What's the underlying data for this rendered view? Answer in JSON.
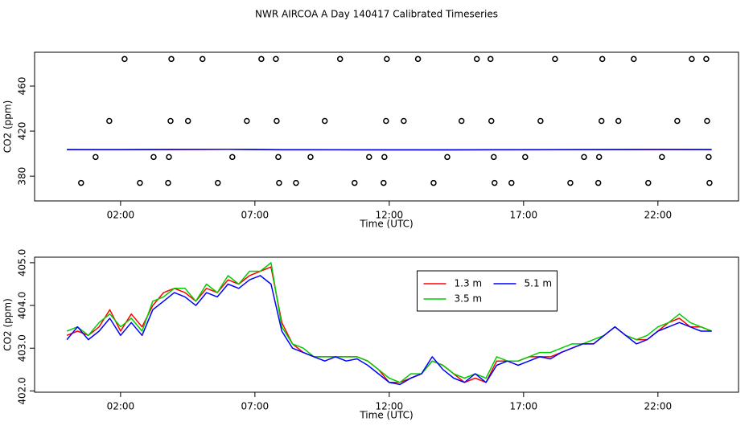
{
  "title": "NWR AIRCOA A  Day 140417  Calibrated Timeseries",
  "chart_data": [
    {
      "type": "line",
      "xlabel": "Time (UTC)",
      "ylabel": "CO2 (ppm)",
      "xlim": [
        -1.2,
        25.0
      ],
      "ylim": [
        358,
        490
      ],
      "xticks": [
        {
          "value": 2,
          "label": "02:00"
        },
        {
          "value": 7,
          "label": "07:00"
        },
        {
          "value": 12,
          "label": "12:00"
        },
        {
          "value": 17,
          "label": "17:00"
        },
        {
          "value": 22,
          "label": "22:00"
        }
      ],
      "yticks": [
        380,
        420,
        460
      ],
      "x": [
        0,
        2,
        4,
        6,
        8,
        10,
        12,
        14,
        16,
        18,
        20,
        22,
        24
      ],
      "series": [
        {
          "color": "#ff0000",
          "values": [
            403.6,
            403.6,
            403.7,
            403.8,
            403.5,
            403.5,
            403.4,
            403.4,
            403.5,
            403.5,
            403.6,
            403.7,
            403.6
          ]
        },
        {
          "color": "#00cc00",
          "values": [
            403.7,
            403.6,
            403.8,
            403.9,
            403.6,
            403.5,
            403.5,
            403.4,
            403.6,
            403.6,
            403.7,
            403.8,
            403.7
          ]
        },
        {
          "color": "#0000ff",
          "values": [
            403.5,
            403.5,
            403.7,
            403.8,
            403.4,
            403.4,
            403.3,
            403.3,
            403.4,
            403.5,
            403.6,
            403.7,
            403.6
          ]
        }
      ],
      "points": {
        "color": "#000000",
        "x": [
          2.15,
          3.89,
          5.05,
          7.24,
          7.78,
          10.17,
          11.91,
          13.07,
          15.26,
          15.77,
          18.17,
          19.93,
          21.1,
          23.26,
          23.8,
          1.58,
          3.86,
          4.51,
          6.7,
          7.81,
          9.6,
          11.88,
          12.54,
          14.69,
          15.8,
          17.63,
          19.9,
          20.53,
          22.72,
          23.83,
          1.07,
          3.23,
          3.8,
          6.16,
          7.87,
          9.07,
          11.25,
          11.82,
          14.16,
          15.89,
          17.06,
          19.25,
          19.81,
          22.15,
          23.89,
          0.53,
          2.72,
          3.77,
          5.62,
          7.9,
          8.53,
          10.71,
          11.79,
          13.65,
          15.92,
          16.55,
          18.74,
          19.78,
          21.64,
          23.92
        ],
        "values": [
          484,
          484,
          484,
          484,
          484,
          484,
          484,
          484,
          484,
          484,
          484,
          484,
          484,
          484,
          484,
          429,
          429,
          429,
          429,
          429,
          429,
          429,
          429,
          429,
          429,
          429,
          429,
          429,
          429,
          429,
          397,
          397,
          397,
          397,
          397,
          397,
          397,
          397,
          397,
          397,
          397,
          397,
          397,
          397,
          397,
          374,
          374,
          374,
          374,
          374,
          374,
          374,
          374,
          374,
          374,
          374,
          374,
          374,
          374,
          374
        ]
      }
    },
    {
      "type": "line",
      "xlabel": "Time (UTC)",
      "ylabel": "CO2 (ppm)",
      "xlim": [
        -1.2,
        25.0
      ],
      "ylim": [
        401.97,
        405.13
      ],
      "legend": "top",
      "xticks": [
        {
          "value": 2,
          "label": "02:00"
        },
        {
          "value": 7,
          "label": "07:00"
        },
        {
          "value": 12,
          "label": "12:00"
        },
        {
          "value": 17,
          "label": "17:00"
        },
        {
          "value": 22,
          "label": "22:00"
        }
      ],
      "yticks": [
        {
          "value": 402,
          "label": "402.0"
        },
        {
          "value": 403,
          "label": "403.0"
        },
        {
          "value": 404,
          "label": "404.0"
        },
        {
          "value": 405,
          "label": "405.0"
        }
      ],
      "x": [
        0,
        0.4,
        0.8,
        1.2,
        1.6,
        2.0,
        2.4,
        2.8,
        3.2,
        3.6,
        4.0,
        4.4,
        4.8,
        5.2,
        5.6,
        6.0,
        6.4,
        6.8,
        7.2,
        7.6,
        8.0,
        8.4,
        8.8,
        9.2,
        9.6,
        10.0,
        10.4,
        10.8,
        11.2,
        11.6,
        12.0,
        12.4,
        12.8,
        13.2,
        13.6,
        14.0,
        14.4,
        14.8,
        15.2,
        15.6,
        16.0,
        16.4,
        16.8,
        17.2,
        17.6,
        18.0,
        18.4,
        18.8,
        19.2,
        19.6,
        20.0,
        20.4,
        20.8,
        21.2,
        21.6,
        22.0,
        22.4,
        22.8,
        23.2,
        23.6,
        24.0
      ],
      "series": [
        {
          "name": "1.3 m",
          "color": "#ff0000",
          "values": [
            403.3,
            403.4,
            403.3,
            403.5,
            403.9,
            403.4,
            403.8,
            403.5,
            404.0,
            404.3,
            404.4,
            404.3,
            404.1,
            404.4,
            404.3,
            404.6,
            404.5,
            404.7,
            404.8,
            404.9,
            403.6,
            403.1,
            402.9,
            402.8,
            402.8,
            402.8,
            402.8,
            402.8,
            402.7,
            402.5,
            402.2,
            402.2,
            402.3,
            402.4,
            402.7,
            402.6,
            402.4,
            402.2,
            402.3,
            402.2,
            402.7,
            402.7,
            402.7,
            402.8,
            402.8,
            402.8,
            402.9,
            403.0,
            403.1,
            403.1,
            403.3,
            403.5,
            403.3,
            403.2,
            403.2,
            403.4,
            403.6,
            403.7,
            403.5,
            403.5,
            403.4
          ]
        },
        {
          "name": "3.5 m",
          "color": "#00cc00",
          "values": [
            403.4,
            403.5,
            403.3,
            403.6,
            403.8,
            403.5,
            403.7,
            403.4,
            404.1,
            404.2,
            404.4,
            404.4,
            404.1,
            404.5,
            404.3,
            404.7,
            404.5,
            404.8,
            404.8,
            405.0,
            403.5,
            403.1,
            403.0,
            402.8,
            402.8,
            402.8,
            402.8,
            402.8,
            402.7,
            402.5,
            402.3,
            402.2,
            402.4,
            402.4,
            402.7,
            402.6,
            402.4,
            402.3,
            402.4,
            402.3,
            402.8,
            402.7,
            402.7,
            402.8,
            402.9,
            402.9,
            403.0,
            403.1,
            403.1,
            403.2,
            403.3,
            403.5,
            403.3,
            403.2,
            403.3,
            403.5,
            403.6,
            403.8,
            403.6,
            403.5,
            403.4
          ]
        },
        {
          "name": "5.1 m",
          "color": "#0000ff",
          "values": [
            403.2,
            403.5,
            403.2,
            403.4,
            403.7,
            403.3,
            403.6,
            403.3,
            403.9,
            404.1,
            404.3,
            404.2,
            404.0,
            404.3,
            404.2,
            404.5,
            404.4,
            404.6,
            404.7,
            404.5,
            403.4,
            403.0,
            402.9,
            402.8,
            402.7,
            402.8,
            402.7,
            402.75,
            402.6,
            402.4,
            402.2,
            402.15,
            402.3,
            402.4,
            402.8,
            402.5,
            402.3,
            402.2,
            402.4,
            402.2,
            402.6,
            402.7,
            402.6,
            402.7,
            402.8,
            402.75,
            402.9,
            403.0,
            403.1,
            403.1,
            403.3,
            403.5,
            403.3,
            403.1,
            403.2,
            403.4,
            403.5,
            403.6,
            403.5,
            403.4,
            403.4
          ]
        }
      ]
    }
  ]
}
